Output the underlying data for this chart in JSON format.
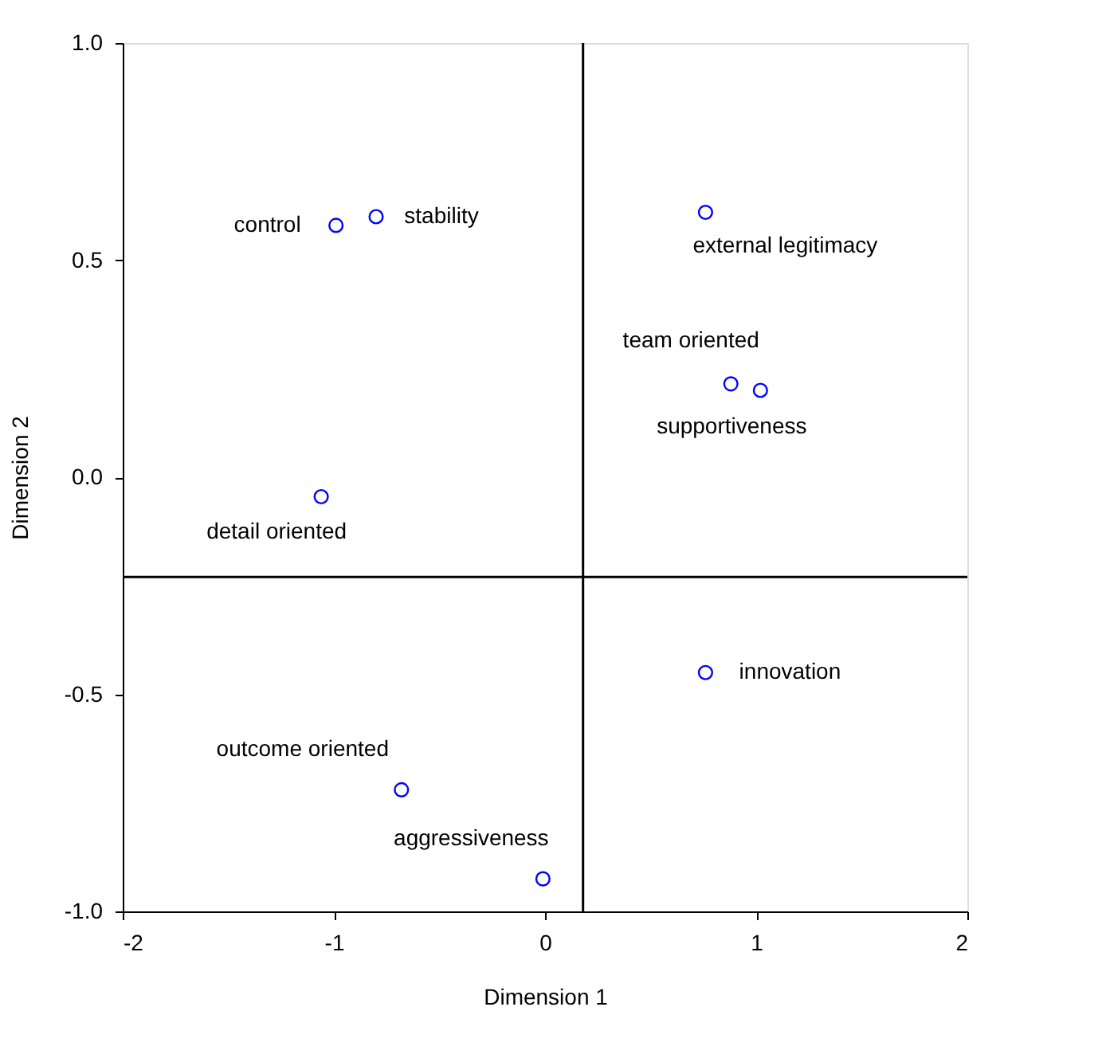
{
  "chart_data": {
    "type": "scatter",
    "xlabel": "Dimension 1",
    "ylabel": "Dimension 2",
    "x": [
      -0.99,
      -0.8,
      0.76,
      0.88,
      1.02,
      -1.06,
      0.76,
      -0.68,
      -0.01
    ],
    "series": [
      {
        "color": "#0000ff",
        "values": [
          0.58,
          0.6,
          0.61,
          0.215,
          0.2,
          -0.045,
          -0.45,
          -0.72,
          -0.925
        ]
      }
    ],
    "xlim": [
      -2,
      2
    ],
    "ylim": [
      -1,
      1
    ],
    "xticks": [
      -2,
      -1,
      0,
      1,
      2
    ],
    "yticks": [
      {
        "value": -1,
        "label": "-1.0"
      },
      {
        "value": -0.5,
        "label": "-0.5"
      },
      {
        "value": 0,
        "label": "0.0"
      },
      {
        "value": 0.5,
        "label": "0.5"
      },
      {
        "value": 1,
        "label": "1.0"
      }
    ],
    "ref_lines": [
      {
        "axis": "x",
        "value": 0.18,
        "color": "#000000"
      },
      {
        "axis": "y",
        "value": -0.23,
        "color": "#000000"
      }
    ],
    "annotations": [
      {
        "text": "control",
        "x": -0.99,
        "y": 0.58
      },
      {
        "text": "stability",
        "x": -0.8,
        "y": 0.6
      },
      {
        "text": "external legitimacy",
        "x": 0.76,
        "y": 0.61
      },
      {
        "text": "team oriented",
        "x": 0.88,
        "y": 0.215
      },
      {
        "text": "supportiveness",
        "x": 1.02,
        "y": 0.2
      },
      {
        "text": "detail oriented",
        "x": -1.06,
        "y": -0.045
      },
      {
        "text": "innovation",
        "x": 0.76,
        "y": -0.45
      },
      {
        "text": "outcome oriented",
        "x": -0.68,
        "y": -0.72
      },
      {
        "text": "aggressiveness",
        "x": -0.01,
        "y": -0.925
      }
    ],
    "marker": "circle",
    "grid": false
  }
}
